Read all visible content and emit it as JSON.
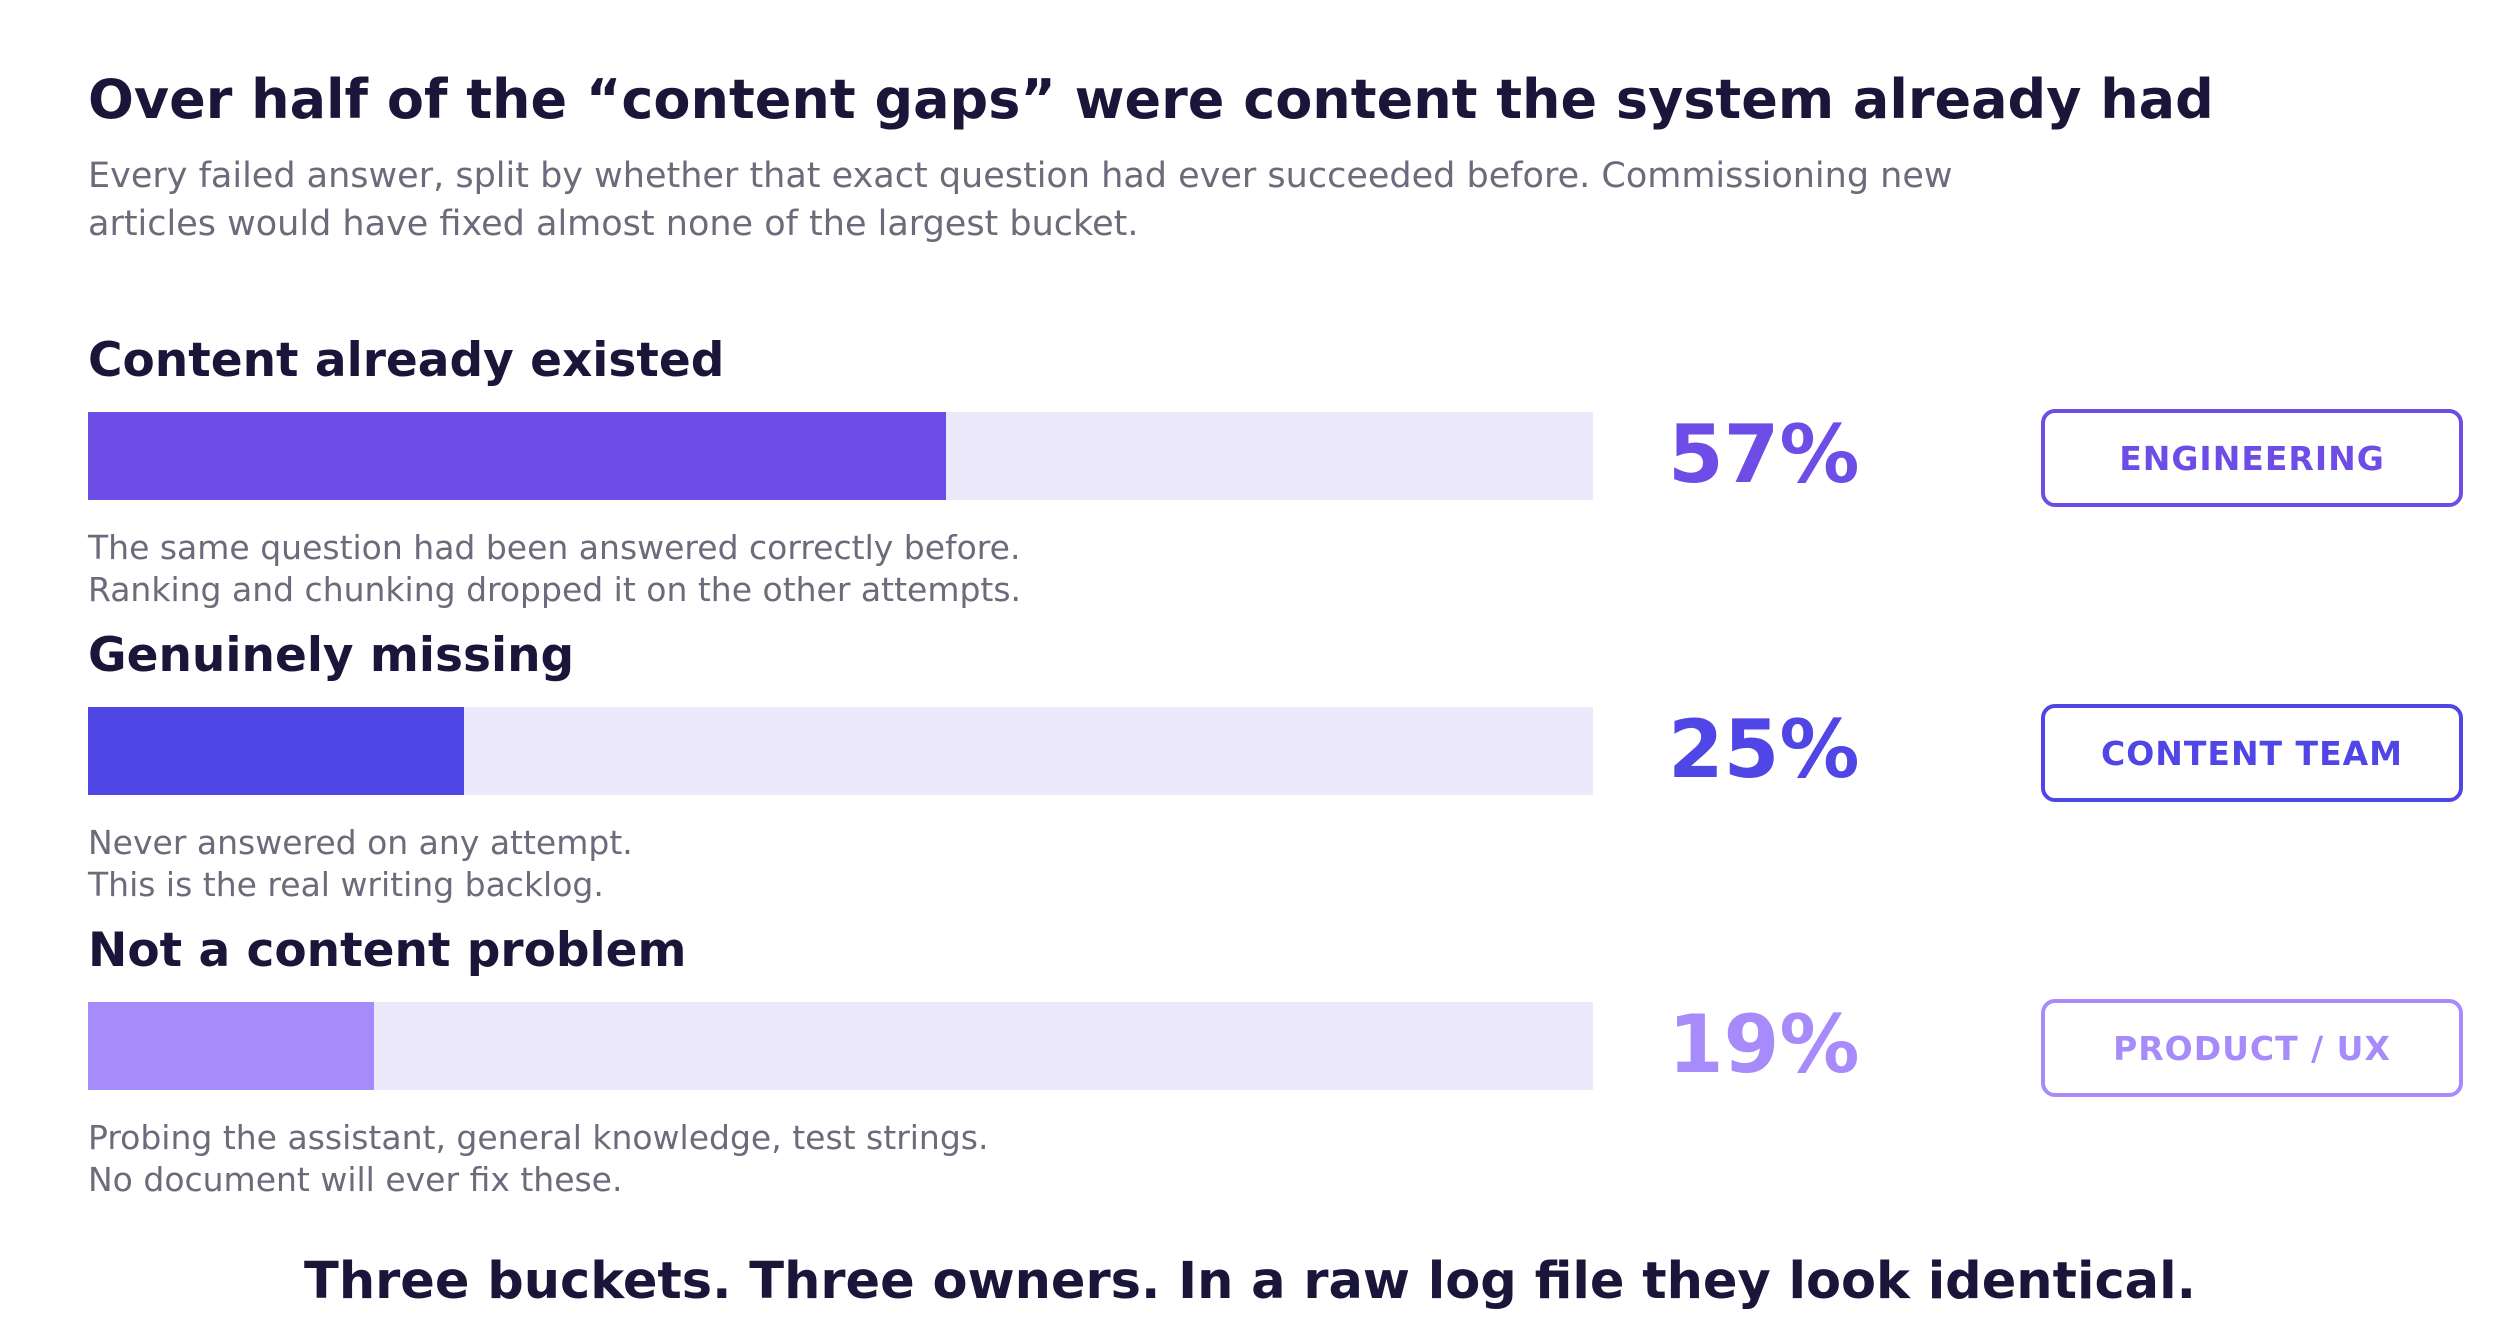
{
  "header": {
    "title": "Over half of the “content gaps” were content the system already had",
    "subtitle": "Every failed answer, split by whether that exact question had ever succeeded before. Commissioning new articles would have fixed almost none of the largest bucket."
  },
  "chart_data": {
    "type": "bar",
    "orientation": "horizontal",
    "categories": [
      "Content already existed",
      "Genuinely missing",
      "Not a content problem"
    ],
    "values": [
      57,
      25,
      19
    ],
    "unit": "%",
    "xlim": [
      0,
      100
    ],
    "value_labels": [
      "57%",
      "25%",
      "19%"
    ],
    "owners": [
      "ENGINEERING",
      "CONTENT TEAM",
      "PRODUCT / UX"
    ],
    "descriptions": [
      [
        "The same question had been answered correctly before.",
        "Ranking and chunking dropped it on the other attempts."
      ],
      [
        "Never answered on any attempt.",
        "This is the real writing backlog."
      ],
      [
        "Probing the assistant, general knowledge, test strings.",
        "No document will ever fix these."
      ]
    ],
    "colors": [
      "#6d4de5",
      "#4f46e5",
      "#a78bfa"
    ],
    "track_color": "#ece9fb",
    "grid": false,
    "legend": "none"
  },
  "footer": {
    "text": "Three buckets. Three owners. In a raw log file they look identical."
  }
}
